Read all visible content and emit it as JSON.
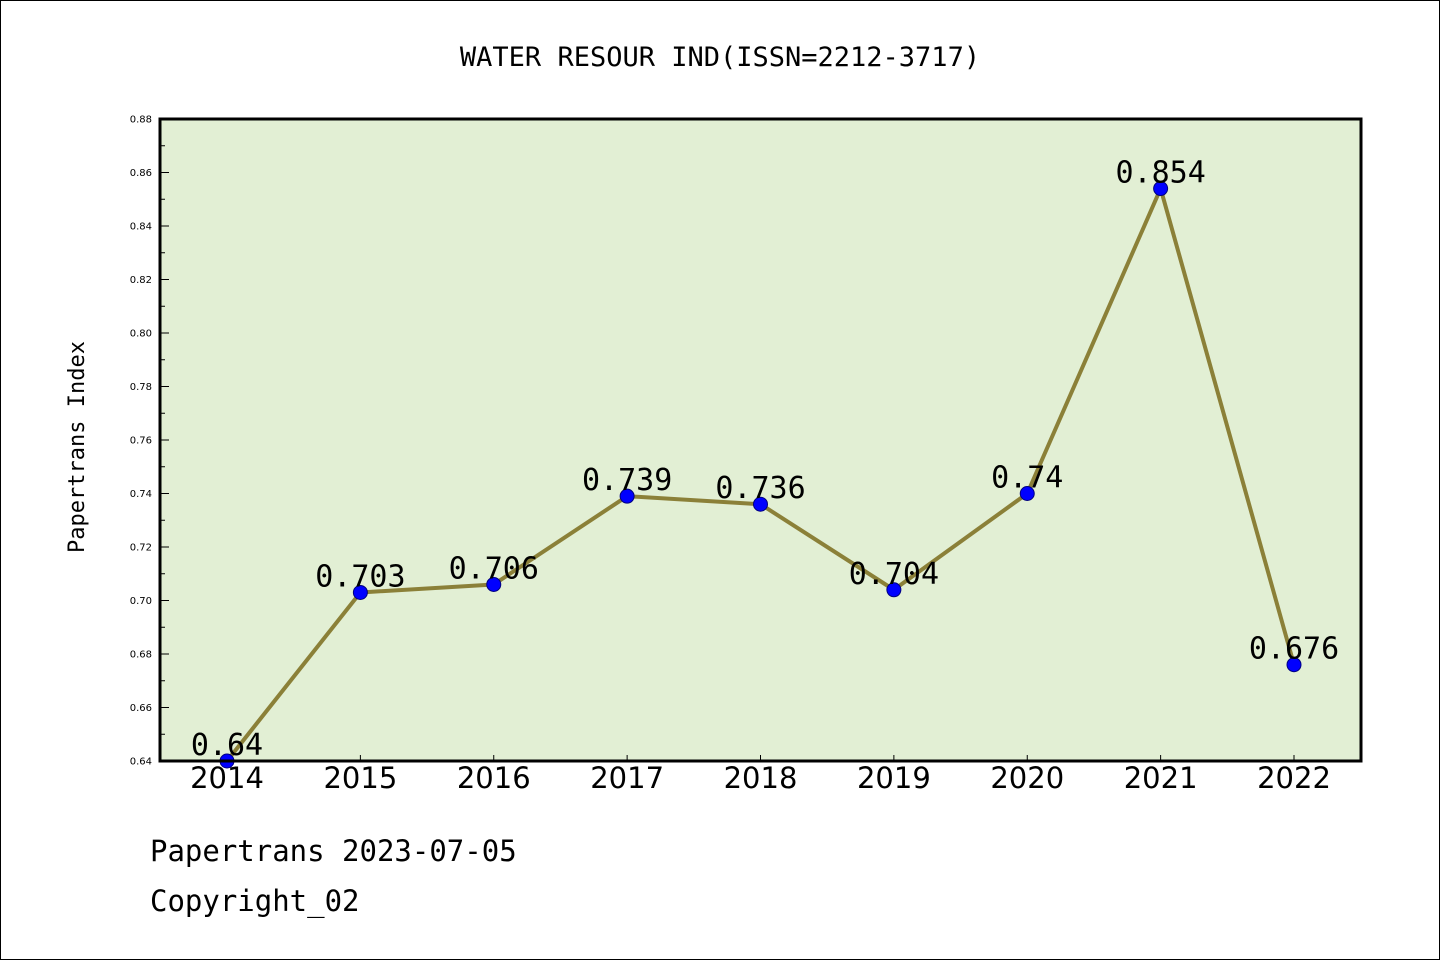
{
  "chart_data": {
    "type": "line",
    "title": "WATER RESOUR IND(ISSN=2212-3717)",
    "xlabel": "",
    "ylabel": "Papertrans Index",
    "categories": [
      "2014",
      "2015",
      "2016",
      "2017",
      "2018",
      "2019",
      "2020",
      "2021",
      "2022"
    ],
    "values": [
      0.64,
      0.703,
      0.706,
      0.739,
      0.736,
      0.704,
      0.74,
      0.854,
      0.676
    ],
    "data_labels": [
      "0.64",
      "0.703",
      "0.706",
      "0.739",
      "0.736",
      "0.704",
      "0.74",
      "0.854",
      "0.676"
    ],
    "ylim": [
      0.64,
      0.88
    ],
    "yticks": [
      "0.64",
      "0.66",
      "0.68",
      "0.70",
      "0.72",
      "0.74",
      "0.76",
      "0.78",
      "0.80",
      "0.82",
      "0.84",
      "0.86",
      "0.88"
    ],
    "grid": false,
    "legend": "none",
    "colors": {
      "line": "#8b8038",
      "marker": "#0000ff",
      "plot_background": "#e2efd4",
      "axes": "#000000"
    }
  },
  "footer": {
    "line1": "Papertrans 2023-07-05",
    "line2": "Copyright_02"
  }
}
